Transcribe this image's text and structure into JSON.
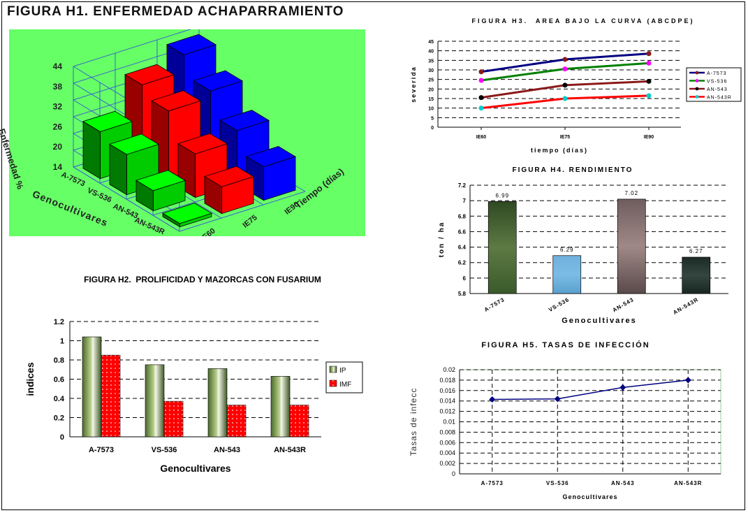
{
  "h1": {
    "title": "FIGURA H1. ENFERMEDAD ACHAPARRAMIENTO",
    "ylabel": "Enfermedad %",
    "xlabel": "Genocultivares",
    "zlabel": "Tiempo (días)",
    "yticks": [
      "44",
      "38",
      "32",
      "26",
      "20",
      "14"
    ],
    "genos": [
      "A-7573",
      "VS-536",
      "AN-543",
      "AN-543R"
    ],
    "times": [
      "IE60",
      "IE75",
      "IE90"
    ]
  },
  "h2": {
    "title": "FIGURA H2.  PROLIFICIDAD Y MAZORCAS CON FUSARIUM"
  },
  "h3": {
    "title": "FIGURA H3.  AREA BAJO LA CURVA (ABCDPE)"
  },
  "h4": {
    "title": "FIGURA H4. RENDIMIENTO"
  },
  "h5": {
    "title": "FIGURA H5. TASAS DE INFECCIÓN"
  },
  "chart_data": [
    {
      "id": "h1",
      "type": "bar",
      "title": "FIGURA H1. ENFERMEDAD ACHAPARRAMIENTO",
      "ylabel": "Enfermedad %",
      "xlabel": "Genocultivares",
      "zlabel": "Tiempo (días)",
      "categories": [
        "A-7573",
        "VS-536",
        "AN-543",
        "AN-543R"
      ],
      "ylim": [
        14,
        44
      ],
      "series": [
        {
          "name": "IE60",
          "color": "#00cc00",
          "values": [
            28,
            26,
            20,
            15
          ]
        },
        {
          "name": "IE75",
          "color": "#ff0000",
          "values": [
            38,
            35,
            27,
            22
          ]
        },
        {
          "name": "IE90",
          "color": "#0000ff",
          "values": [
            43,
            37,
            30,
            24
          ]
        }
      ]
    },
    {
      "id": "h2",
      "type": "bar",
      "title": "FIGURA H2.  PROLIFICIDAD Y MAZORCAS CON FUSARIUM",
      "xlabel": "Genocultivares",
      "ylabel": "indices",
      "categories": [
        "A-7573",
        "VS-536",
        "AN-543",
        "AN-543R"
      ],
      "ylim": [
        0,
        1.2
      ],
      "yticks": [
        "0",
        "0.2",
        "0.4",
        "0.6",
        "0.8",
        "1",
        "1.2"
      ],
      "series": [
        {
          "name": "IP",
          "values": [
            1.04,
            0.75,
            0.71,
            0.63
          ]
        },
        {
          "name": "IMF",
          "values": [
            0.85,
            0.37,
            0.33,
            0.33
          ]
        }
      ]
    },
    {
      "id": "h3",
      "type": "line",
      "title": "FIGURA H3.  AREA BAJO LA CURVA (ABCDPE)",
      "xlabel": "tiempo (días)",
      "ylabel": "severida",
      "x": [
        "IE60",
        "IE75",
        "IE90"
      ],
      "ylim": [
        0,
        45
      ],
      "yticks": [
        "0",
        "5",
        "10",
        "15",
        "20",
        "25",
        "30",
        "35",
        "40",
        "45"
      ],
      "legend": "right",
      "series": [
        {
          "name": "A-7573",
          "color": "#000080",
          "marker": "#8b1a1a",
          "values": [
            29,
            35.5,
            38.5
          ]
        },
        {
          "name": "VS-536",
          "color": "#008000",
          "marker": "#ff00ff",
          "values": [
            24.5,
            30.5,
            33.5
          ]
        },
        {
          "name": "AN-543",
          "color": "#8b1a1a",
          "marker": "#000000",
          "values": [
            15.5,
            22,
            24
          ]
        },
        {
          "name": "AN-543R",
          "color": "#ff0000",
          "marker": "#00cccc",
          "values": [
            10,
            15,
            16.5
          ]
        }
      ]
    },
    {
      "id": "h4",
      "type": "bar",
      "title": "FIGURA H4. RENDIMIENTO",
      "xlabel": "Genocultivares",
      "ylabel": "ton / ha",
      "categories": [
        "A-7573",
        "VS-536",
        "AN-543",
        "AN-543R"
      ],
      "values": [
        6.99,
        6.29,
        7.02,
        6.27
      ],
      "data_labels": [
        "6.99",
        "6.29",
        "7.02",
        "6.27"
      ],
      "ylim": [
        5.8,
        7.2
      ],
      "yticks": [
        "5.8",
        "6",
        "6.2",
        "6.4",
        "6.6",
        "6.8",
        "7",
        "7.2"
      ]
    },
    {
      "id": "h5",
      "type": "line",
      "title": "FIGURA H5. TASAS DE INFECCIÓN",
      "xlabel": "Genocultivares",
      "ylabel": "Tasas de infecc",
      "x": [
        "A-7573",
        "VS-536",
        "AN-543",
        "AN-543R"
      ],
      "values": [
        0.0143,
        0.0144,
        0.0166,
        0.018
      ],
      "ylim": [
        0,
        0.02
      ],
      "yticks": [
        "0",
        "0.002",
        "0.004",
        "0.006",
        "0.008",
        "0.01",
        "0.012",
        "0.014",
        "0.016",
        "0.018",
        "0.02"
      ]
    }
  ]
}
